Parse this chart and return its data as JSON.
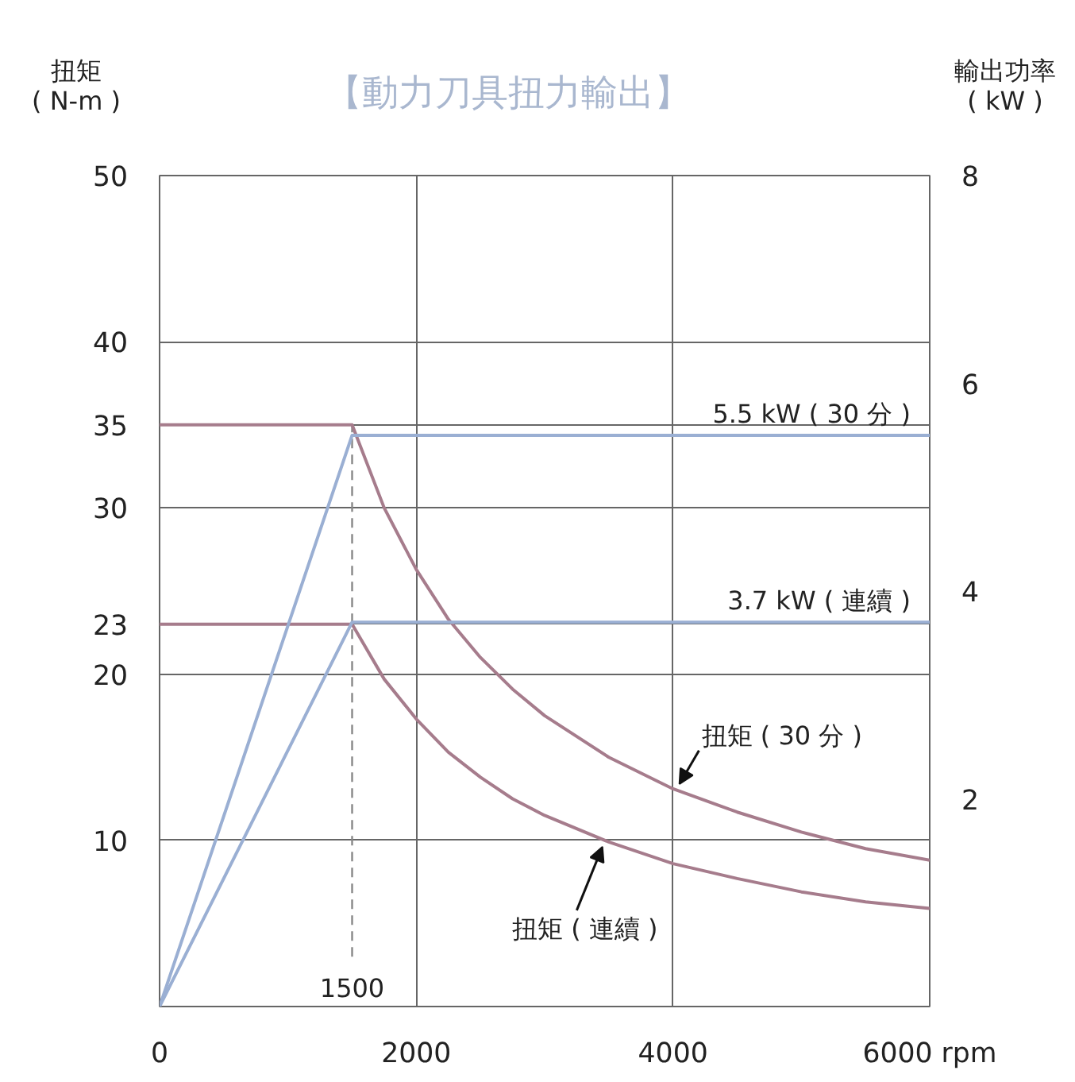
{
  "chart_data": {
    "type": "line",
    "title": "【動力刀具扭力輸出】",
    "ylabel": "扭矩\n( N-m )",
    "y2label": "輸出功率\n( kW )",
    "xlim": [
      0,
      6000
    ],
    "ylim": [
      0,
      50
    ],
    "y2lim": [
      0,
      8
    ],
    "xticks": [
      {
        "value": 0,
        "label": "0"
      },
      2000,
      4000,
      {
        "value": 6000,
        "label": "6000 rpm"
      }
    ],
    "yticks": [
      10,
      20,
      23,
      30,
      35,
      40,
      50
    ],
    "y2ticks": [
      2,
      4,
      6,
      8
    ],
    "grid": true,
    "marker": "none",
    "line_style": "solid",
    "ref_lines": [
      {
        "axis": "x",
        "value": 1500,
        "label": "1500",
        "line_style": "dashed",
        "color": "#888888"
      }
    ],
    "series": [
      {
        "name": "扭矩 ( 30 分 )",
        "color": "#a67c8c",
        "x": [
          0,
          1500,
          1750,
          2000,
          2250,
          2500,
          2750,
          3000,
          3500,
          4000,
          4500,
          5000,
          5500,
          6000
        ],
        "values": [
          35,
          35,
          30.0,
          26.3,
          23.3,
          21.0,
          19.1,
          17.5,
          15.0,
          13.1,
          11.7,
          10.5,
          9.5,
          8.8
        ]
      },
      {
        "name": "扭矩 ( 連續 )",
        "color": "#a67c8c",
        "x": [
          0,
          1500,
          1750,
          2000,
          2250,
          2500,
          2750,
          3000,
          3500,
          4000,
          4500,
          5000,
          5500,
          6000
        ],
        "values": [
          23,
          23,
          19.7,
          17.3,
          15.3,
          13.8,
          12.5,
          11.5,
          9.9,
          8.6,
          7.7,
          6.9,
          6.3,
          5.9
        ]
      },
      {
        "name": "5.5 kW ( 30 分 )",
        "color": "#9aafd3",
        "axis": "y2",
        "x": [
          0,
          1500,
          6000
        ],
        "values": [
          0,
          5.5,
          5.5
        ]
      },
      {
        "name": "3.7 kW ( 連續 )",
        "color": "#9aafd3",
        "axis": "y2",
        "x": [
          0,
          1500,
          6000
        ],
        "values": [
          0,
          3.7,
          3.7
        ]
      }
    ]
  }
}
